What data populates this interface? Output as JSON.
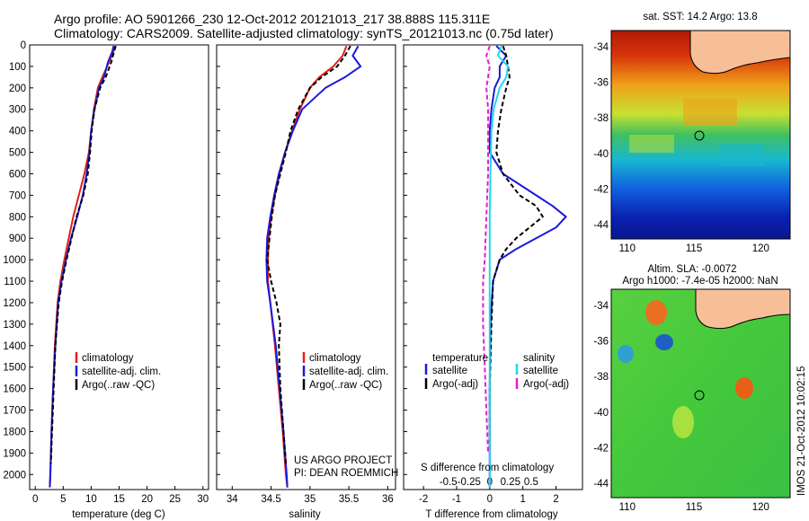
{
  "title_line1": "Argo profile: AO 5901266_230 12-Oct-2012 20121013_217 38.888S 115.311E",
  "title_line2": "Climatology: CARS2009. Satellite-adjusted climatology: synTS_20121013.nc (0.75d later)",
  "credit": "IMOS 21-Oct-2012 10:02:15",
  "project_line1": "US ARGO PROJECT",
  "project_line2": "PI: DEAN ROEMMICH",
  "colors": {
    "climatology": "#e0201a",
    "satellite": "#1a1adc",
    "argo": "#000000",
    "salinity_satellite": "#20d8ec",
    "salinity_argo": "#e020d0",
    "land": "#f7bf98"
  },
  "chart_data": [
    {
      "type": "line",
      "panel": "temperature",
      "xlabel": "temperature (deg C)",
      "ylabel": "",
      "xlim": [
        -1,
        31
      ],
      "ylim": [
        2070,
        0
      ],
      "xticks": [
        0,
        5,
        10,
        15,
        20,
        25,
        30
      ],
      "yticks": [
        0,
        100,
        200,
        300,
        400,
        500,
        600,
        700,
        800,
        900,
        1000,
        1100,
        1200,
        1300,
        1400,
        1500,
        1600,
        1700,
        1800,
        1900,
        2000
      ],
      "legend": [
        "climatology",
        "satellite-adj. clim.",
        "Argo(..raw -QC)"
      ],
      "series": [
        {
          "name": "climatology",
          "color": "#e0201a",
          "dash": "",
          "y": [
            5,
            30,
            80,
            150,
            200,
            300,
            400,
            500,
            600,
            700,
            800,
            900,
            1000,
            1100,
            1200,
            1400,
            1600,
            1800,
            2000,
            2060
          ],
          "x": [
            14.2,
            14.0,
            13.2,
            12.0,
            11.2,
            10.5,
            10.0,
            9.6,
            8.8,
            7.8,
            6.8,
            6.0,
            5.2,
            4.5,
            4.0,
            3.5,
            3.2,
            2.9,
            2.7,
            2.6
          ]
        },
        {
          "name": "satellite-adj. clim.",
          "color": "#1a1adc",
          "dash": "",
          "y": [
            5,
            30,
            80,
            150,
            200,
            300,
            400,
            500,
            600,
            700,
            800,
            900,
            1000,
            1100,
            1200,
            1400,
            1600,
            1800,
            2000,
            2060
          ],
          "x": [
            14.0,
            13.8,
            13.0,
            12.3,
            11.4,
            10.6,
            10.0,
            9.7,
            9.2,
            8.5,
            7.5,
            6.4,
            5.5,
            4.7,
            4.1,
            3.6,
            3.2,
            2.9,
            2.7,
            2.6
          ]
        },
        {
          "name": "Argo(..raw -QC)",
          "color": "#000000",
          "dash": "5,3",
          "y": [
            5,
            30,
            80,
            150,
            200,
            300,
            400,
            500,
            600,
            700,
            800,
            900,
            1000,
            1100,
            1200,
            1400,
            1600,
            1800,
            1950
          ],
          "x": [
            14.4,
            14.1,
            13.6,
            12.6,
            11.6,
            10.6,
            10.1,
            9.8,
            9.4,
            8.6,
            7.4,
            6.5,
            5.6,
            4.8,
            4.2,
            3.6,
            3.3,
            3.0,
            2.8
          ]
        }
      ]
    },
    {
      "type": "line",
      "panel": "salinity",
      "xlabel": "salinity",
      "ylabel": "",
      "xlim": [
        33.8,
        36.1
      ],
      "ylim": [
        2070,
        0
      ],
      "xticks": [
        34,
        34.5,
        35,
        35.5,
        36
      ],
      "legend": [
        "climatology",
        "satellite-adj. clim.",
        "Argo(..raw -QC)"
      ],
      "series": [
        {
          "name": "climatology",
          "color": "#e0201a",
          "dash": "",
          "y": [
            5,
            50,
            100,
            150,
            200,
            300,
            400,
            500,
            600,
            700,
            800,
            900,
            1000,
            1100,
            1200,
            1400,
            1600,
            1800,
            2000,
            2060
          ],
          "x": [
            35.47,
            35.42,
            35.3,
            35.12,
            35.0,
            34.87,
            34.77,
            34.68,
            34.61,
            34.55,
            34.5,
            34.47,
            34.46,
            34.46,
            34.49,
            34.55,
            34.6,
            34.65,
            34.69,
            34.71
          ]
        },
        {
          "name": "satellite-adj. clim.",
          "color": "#1a1adc",
          "dash": "",
          "y": [
            5,
            50,
            100,
            150,
            200,
            300,
            400,
            500,
            600,
            700,
            800,
            900,
            1000,
            1100,
            1200,
            1400,
            1600,
            1800,
            2000,
            2060
          ],
          "x": [
            35.62,
            35.55,
            35.65,
            35.45,
            35.2,
            34.9,
            34.78,
            34.68,
            34.6,
            34.54,
            34.49,
            34.45,
            34.44,
            34.45,
            34.49,
            34.56,
            34.61,
            34.66,
            34.7,
            34.71
          ]
        },
        {
          "name": "Argo(..raw -QC)",
          "color": "#000000",
          "dash": "5,3",
          "y": [
            5,
            50,
            100,
            150,
            200,
            300,
            400,
            500,
            600,
            700,
            800,
            900,
            1000,
            1100,
            1200,
            1300,
            1400,
            1600,
            1800,
            1950
          ],
          "x": [
            35.52,
            35.45,
            35.35,
            35.15,
            35.0,
            34.85,
            34.75,
            34.69,
            34.62,
            34.55,
            34.51,
            34.48,
            34.45,
            34.5,
            34.57,
            34.62,
            34.6,
            34.62,
            34.66,
            34.69
          ]
        }
      ]
    },
    {
      "type": "line",
      "panel": "difference",
      "xlabel": "T difference from climatology",
      "xlabel_top": "S difference from climatology",
      "xlim": [
        -2.6,
        2.8
      ],
      "ylim": [
        2070,
        0
      ],
      "xticks": [
        -2,
        -1,
        0,
        1,
        2
      ],
      "xticks_s": [
        -0.5,
        -0.25,
        0,
        0.25,
        0.5
      ],
      "legend_titles": [
        "temperature",
        "salinity"
      ],
      "legend_left": [
        "satellite",
        "Argo(-adj)"
      ],
      "legend_right": [
        "satellite",
        "Argo(-adj)"
      ],
      "series": [
        {
          "name": "temperature satellite",
          "color": "#1a1adc",
          "dash": "",
          "y": [
            5,
            50,
            100,
            150,
            200,
            300,
            400,
            500,
            600,
            650,
            700,
            750,
            800,
            850,
            900,
            950,
            1000,
            1100,
            1300,
            1600,
            1900,
            2060
          ],
          "x": [
            0.2,
            0.5,
            0.3,
            0.3,
            0.15,
            0.05,
            0.0,
            0.0,
            0.4,
            0.9,
            1.4,
            1.9,
            2.3,
            2.0,
            1.4,
            0.8,
            0.3,
            0.1,
            0.02,
            0.0,
            0.0,
            0.0
          ]
        },
        {
          "name": "temperature Argo(-adj)",
          "color": "#000000",
          "dash": "5,3",
          "y": [
            5,
            50,
            100,
            150,
            200,
            300,
            400,
            500,
            600,
            700,
            750,
            800,
            850,
            900,
            950,
            1000,
            1100,
            1300,
            1600,
            1900
          ],
          "x": [
            0.4,
            0.5,
            0.55,
            0.6,
            0.5,
            0.35,
            0.25,
            0.2,
            0.4,
            0.9,
            1.4,
            1.6,
            1.2,
            0.8,
            0.5,
            0.3,
            0.1,
            0.05,
            0.0,
            0.0
          ]
        },
        {
          "name": "salinity satellite",
          "color": "#20d8ec",
          "dash": "",
          "y": [
            5,
            50,
            100,
            150,
            200,
            300,
            400,
            600,
            800,
            1000,
            1200,
            1500,
            1800,
            2060
          ],
          "x": [
            0.35,
            0.25,
            0.55,
            0.5,
            0.3,
            0.12,
            0.05,
            0.02,
            0.0,
            0.0,
            0.0,
            0.0,
            0.0,
            0.0
          ]
        },
        {
          "name": "salinity Argo(-adj)",
          "color": "#e020d0",
          "dash": "5,3",
          "y": [
            5,
            50,
            100,
            150,
            200,
            300,
            400,
            600,
            800,
            1000,
            1100,
            1300,
            1500,
            1700,
            1900
          ],
          "x": [
            0.0,
            -0.1,
            0.0,
            -0.05,
            -0.1,
            -0.05,
            -0.05,
            -0.05,
            -0.1,
            -0.15,
            -0.2,
            -0.2,
            -0.15,
            -0.1,
            -0.05
          ]
        }
      ]
    },
    {
      "type": "heatmap",
      "panel": "sst-map",
      "title": "sat. SST: 14.2  Argo: 13.8",
      "xlim": [
        108.8,
        122.2
      ],
      "ylim": [
        -44.8,
        -33.1
      ],
      "xticks": [
        110,
        115,
        120
      ],
      "yticks": [
        -34,
        -36,
        -38,
        -40,
        -42,
        -44
      ],
      "marker": {
        "lon": 115.311,
        "lat": -38.888
      }
    },
    {
      "type": "heatmap",
      "panel": "sla-map",
      "title_line1": "Altim. SLA: -0.0072",
      "title_line2": "Argo h1000: -7.4e-05 h2000: NaN",
      "xlim": [
        108.8,
        122.2
      ],
      "ylim": [
        -44.8,
        -33.1
      ],
      "xticks": [
        110,
        115,
        120
      ],
      "yticks": [
        -34,
        -36,
        -38,
        -40,
        -42,
        -44
      ],
      "marker": {
        "lon": 115.311,
        "lat": -38.888
      }
    }
  ]
}
